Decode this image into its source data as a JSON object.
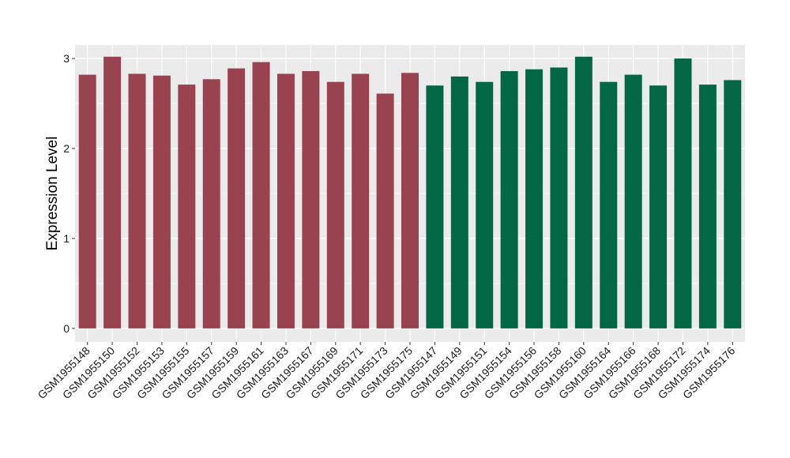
{
  "chart_data": {
    "type": "bar",
    "title": "",
    "xlabel": "",
    "ylabel": "Expression Level",
    "ylim": [
      -0.15,
      3.15
    ],
    "yticks": [
      0,
      1,
      2,
      3
    ],
    "grid": true,
    "legend": "none",
    "categories": [
      "GSM1955148",
      "GSM1955150",
      "GSM1955152",
      "GSM1955153",
      "GSM1955155",
      "GSM1955157",
      "GSM1955159",
      "GSM1955161",
      "GSM1955163",
      "GSM1955167",
      "GSM1955169",
      "GSM1955171",
      "GSM1955173",
      "GSM1955175",
      "GSM1955147",
      "GSM1955149",
      "GSM1955151",
      "GSM1955154",
      "GSM1955156",
      "GSM1955158",
      "GSM1955160",
      "GSM1955164",
      "GSM1955166",
      "GSM1955168",
      "GSM1955172",
      "GSM1955174",
      "GSM1955176"
    ],
    "values": [
      2.82,
      3.02,
      2.83,
      2.81,
      2.71,
      2.77,
      2.89,
      2.96,
      2.83,
      2.86,
      2.74,
      2.83,
      2.61,
      2.84,
      2.7,
      2.8,
      2.74,
      2.86,
      2.88,
      2.9,
      3.02,
      2.74,
      2.82,
      2.7,
      3.0,
      2.71,
      2.76
    ],
    "group_sizes": [
      14,
      13
    ],
    "colors": [
      "#9a4350",
      "#036745"
    ],
    "panel_background": "#ebebeb",
    "grid_color": "#ffffff"
  }
}
